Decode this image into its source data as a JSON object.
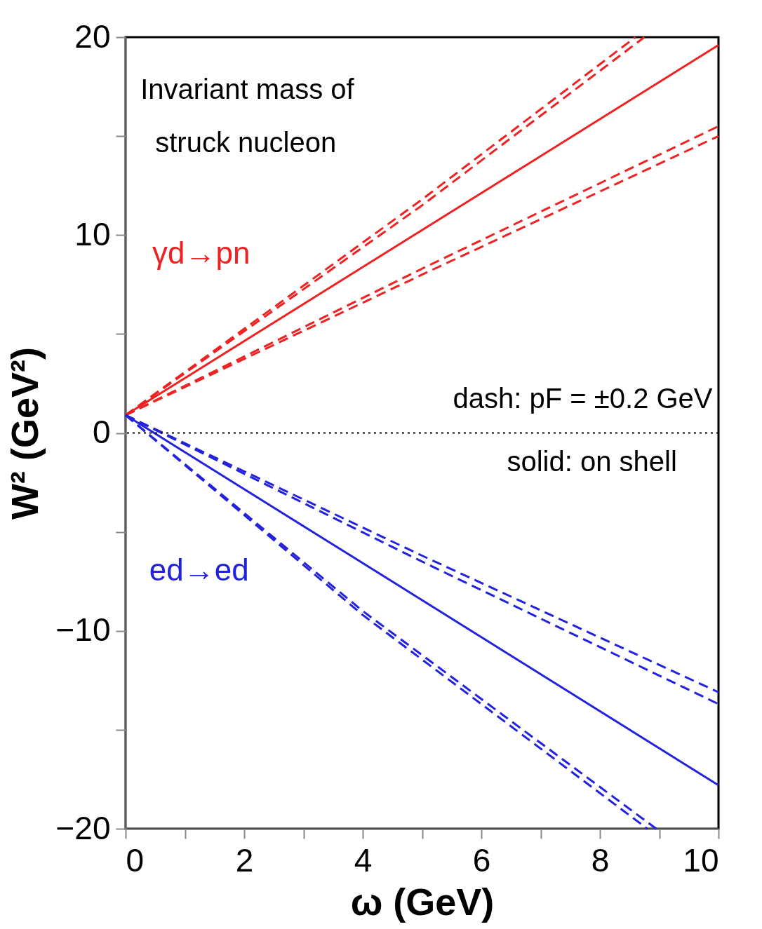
{
  "chart_data": {
    "type": "line",
    "xlabel": "ω (GeV)",
    "ylabel": "W² (GeV²)",
    "xlim": [
      0,
      10
    ],
    "ylim": [
      -20,
      20
    ],
    "xticks": [
      0,
      {
        "value": 1,
        "label": null
      },
      2,
      {
        "value": 3,
        "label": null
      },
      4,
      {
        "value": 5,
        "label": null
      },
      6,
      {
        "value": 7,
        "label": null
      },
      8,
      {
        "value": 9,
        "label": null
      },
      10
    ],
    "yticks": [
      -20,
      {
        "value": -15,
        "label": null
      },
      -10,
      {
        "value": -5,
        "label": null
      },
      0,
      {
        "value": 5,
        "label": null
      },
      10,
      {
        "value": 15,
        "label": null
      },
      20
    ],
    "grid": false,
    "marker": "none",
    "series": [
      {
        "name": "γd→pn",
        "color": "#ee2222",
        "line_style": "solid",
        "x": [
          0,
          10
        ],
        "values": [
          0.9,
          19.6
        ]
      },
      {
        "color": "#ee2222",
        "line_style": "dashed",
        "x": [
          0,
          5,
          8.6
        ],
        "values": [
          0.9,
          11.8,
          20
        ]
      },
      {
        "color": "#ee2222",
        "line_style": "dashed",
        "x": [
          0,
          5,
          8.75
        ],
        "values": [
          0.9,
          11.5,
          20
        ]
      },
      {
        "color": "#ee2222",
        "line_style": "dashed",
        "x": [
          0,
          5,
          10
        ],
        "values": [
          0.9,
          8.3,
          15.5
        ]
      },
      {
        "color": "#ee2222",
        "line_style": "dashed",
        "x": [
          0,
          5,
          10
        ],
        "values": [
          0.9,
          8.0,
          15.0
        ]
      },
      {
        "name": "ed→ed",
        "color": "#2222dd",
        "line_style": "solid",
        "x": [
          0,
          10
        ],
        "values": [
          0.9,
          -17.8
        ]
      },
      {
        "color": "#2222dd",
        "line_style": "dashed",
        "x": [
          0,
          5,
          10
        ],
        "values": [
          0.9,
          -6.2,
          -13.1
        ]
      },
      {
        "color": "#2222dd",
        "line_style": "dashed",
        "x": [
          0,
          5,
          10
        ],
        "values": [
          0.9,
          -6.5,
          -13.7
        ]
      },
      {
        "color": "#2222dd",
        "line_style": "dashed",
        "x": [
          0,
          4,
          8.8
        ],
        "values": [
          0.9,
          -9.2,
          -20
        ]
      },
      {
        "color": "#2222dd",
        "line_style": "dashed",
        "x": [
          0,
          4,
          8.95
        ],
        "values": [
          0.9,
          -9.0,
          -20
        ]
      }
    ],
    "ref_lines": [
      {
        "axis": "y",
        "value": 0,
        "color": "#000000",
        "line_style": "dotted"
      }
    ],
    "annotations": [
      "Invariant mass of struck nucleon",
      "dash: pF = ±0.2 GeV",
      "solid: on shell"
    ]
  }
}
